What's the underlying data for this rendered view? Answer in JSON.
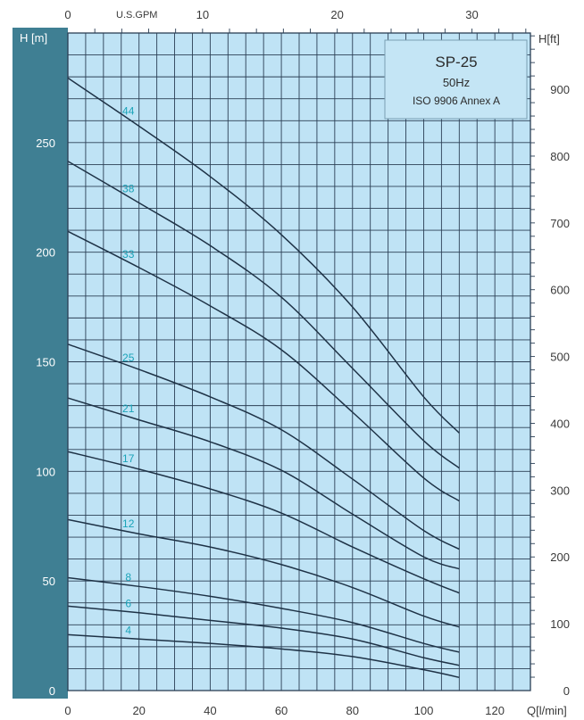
{
  "chart_data": {
    "type": "line",
    "title": "SP-25",
    "frequency": "50Hz",
    "standard": "ISO 9906 Annex A",
    "xlabel": "Q[l/min]",
    "ylabel": "H  [m]",
    "ylabel_right": "H[ft]",
    "xlabel_top": "U.S.GPM",
    "xlim": [
      0,
      130
    ],
    "ylim": [
      0,
      300
    ],
    "x_ticks": [
      "0",
      "20",
      "40",
      "60",
      "80",
      "100",
      "120"
    ],
    "y_ticks": [
      "0",
      "50",
      "100",
      "150",
      "200",
      "250"
    ],
    "top_ticks": [
      "0",
      "10",
      "20",
      "30"
    ],
    "right_ticks": [
      "0",
      "100",
      "200",
      "300",
      "400",
      "500",
      "600",
      "700",
      "800",
      "900"
    ],
    "grid": true,
    "series": [
      {
        "name": "4",
        "x": [
          0,
          20,
          40,
          60,
          80,
          100,
          110
        ],
        "values": [
          25.5,
          23.5,
          21.5,
          19,
          15.5,
          9.5,
          6
        ]
      },
      {
        "name": "6",
        "x": [
          0,
          20,
          40,
          60,
          80,
          100,
          110
        ],
        "values": [
          38.5,
          35.5,
          32,
          28.5,
          23.5,
          15,
          11.5
        ]
      },
      {
        "name": "8",
        "x": [
          0,
          20,
          40,
          60,
          80,
          100,
          110
        ],
        "values": [
          51.5,
          47.5,
          43,
          37.5,
          31,
          21.5,
          17.5
        ]
      },
      {
        "name": "12",
        "x": [
          0,
          20,
          40,
          60,
          80,
          100,
          110
        ],
        "values": [
          78,
          71.5,
          65.5,
          57.5,
          47,
          34,
          29
        ]
      },
      {
        "name": "17",
        "x": [
          0,
          20,
          40,
          60,
          80,
          100,
          110
        ],
        "values": [
          109,
          101,
          92,
          81,
          65.5,
          51,
          44.5
        ]
      },
      {
        "name": "21",
        "x": [
          0,
          20,
          40,
          60,
          80,
          100,
          110
        ],
        "values": [
          133.5,
          123.5,
          113.5,
          100.5,
          80.5,
          61,
          55.5
        ]
      },
      {
        "name": "25",
        "x": [
          0,
          20,
          40,
          60,
          80,
          100,
          110
        ],
        "values": [
          158,
          146.5,
          134,
          119,
          96.5,
          73,
          64.5
        ]
      },
      {
        "name": "33",
        "x": [
          0,
          20,
          40,
          60,
          80,
          100,
          110
        ],
        "values": [
          209.5,
          193,
          175.5,
          155.5,
          127,
          97,
          86.5
        ]
      },
      {
        "name": "38",
        "x": [
          0,
          20,
          40,
          60,
          80,
          100,
          110
        ],
        "values": [
          241.5,
          222.5,
          203,
          179.5,
          147,
          114,
          101.5
        ]
      },
      {
        "name": "44",
        "x": [
          0,
          20,
          40,
          60,
          80,
          100,
          110
        ],
        "values": [
          279.5,
          257.5,
          234.5,
          208,
          175,
          134,
          117.5
        ]
      }
    ],
    "colors": {
      "plot_bg": "#bfe3f5",
      "grid": "#2b3f55",
      "left_band": "#3f7f93",
      "curve": "#1e3246",
      "stage_label": "#1aa3b8",
      "info_box": "#c4e5f5"
    }
  }
}
